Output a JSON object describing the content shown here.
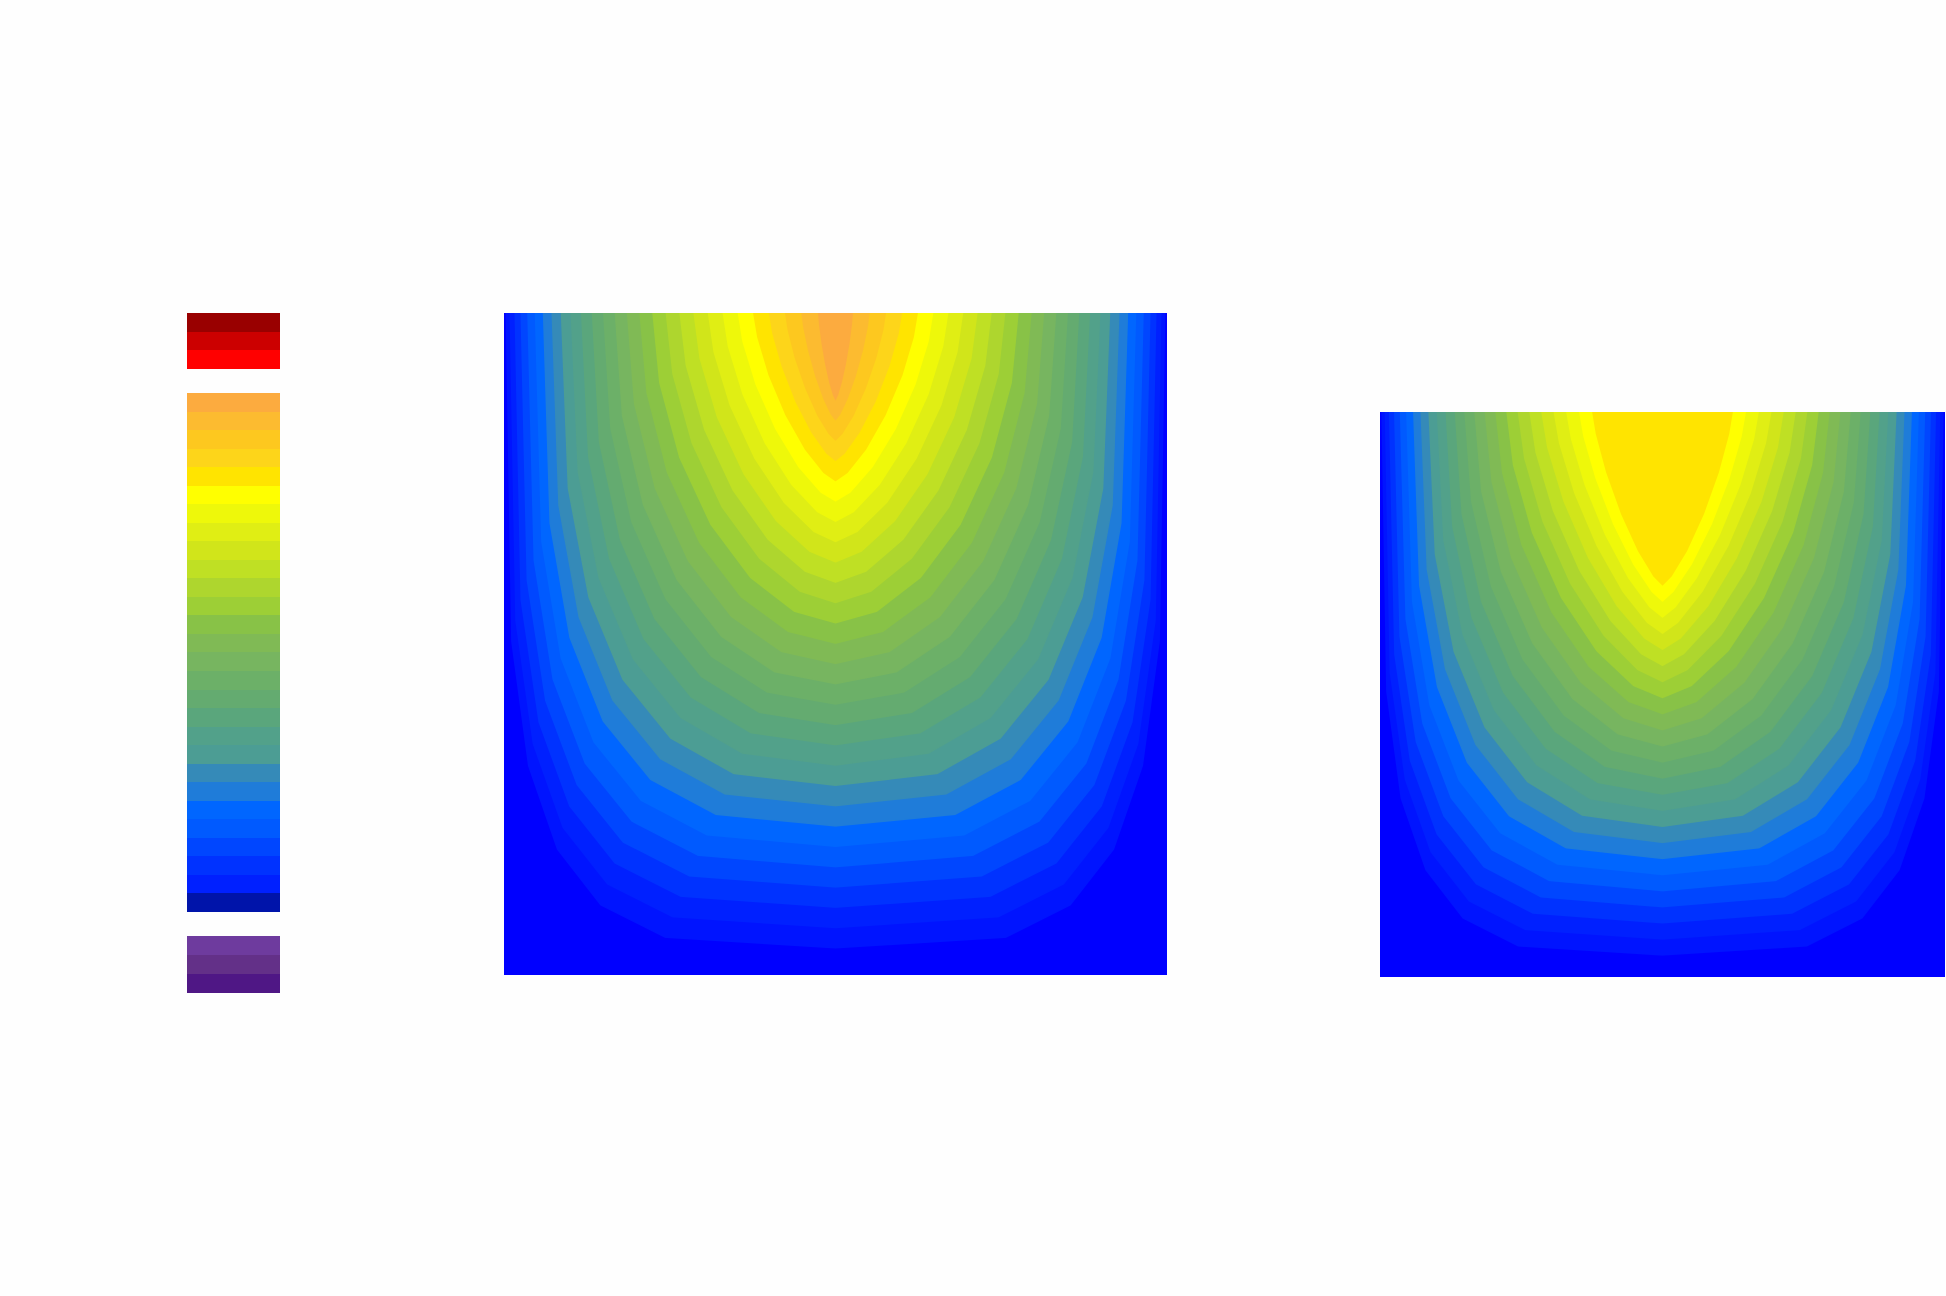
{
  "chart_data": {
    "type": "contour",
    "title": "",
    "colorbar": {
      "over_colors": [
        "#990000",
        "#cc0000",
        "#ff0000"
      ],
      "main_colors": [
        "#fcab3f",
        "#fcbb30",
        "#fdc81f",
        "#fdd51a",
        "#ffe400",
        "#ffff00",
        "#eef80a",
        "#e0ee14",
        "#d1e51a",
        "#bfe024",
        "#aed62e",
        "#9dcf36",
        "#88c247",
        "#80ba55",
        "#77b560",
        "#6cb068",
        "#64ab70",
        "#5aa67c",
        "#52a18a",
        "#4c9d94",
        "#358ab8",
        "#1f7cd9",
        "#0066ff",
        "#005aff",
        "#0046ff",
        "#0032ff",
        "#0020ff",
        "#0014aa"
      ],
      "under_colors": [
        "#6e3b9e",
        "#633088",
        "#4f1785"
      ]
    },
    "plots": [
      {
        "name": "contour-plot-left",
        "max_level_fraction": 1.0,
        "bands": [
          "#0000ff",
          "#0014ff",
          "#0020ff",
          "#0032ff",
          "#0046ff",
          "#005aff",
          "#0066ff",
          "#1f7cd9",
          "#358ab8",
          "#4c9d94",
          "#52a18a",
          "#5aa67c",
          "#64ab70",
          "#6cb068",
          "#77b560",
          "#80ba55",
          "#88c247",
          "#9dcf36",
          "#aed62e",
          "#bfe024",
          "#d1e51a",
          "#e0ee14",
          "#eef80a",
          "#ffff00",
          "#ffe400",
          "#fdd51a",
          "#fdc81f",
          "#fcbb30",
          "#fcab3f"
        ]
      },
      {
        "name": "contour-plot-right",
        "max_level_fraction": 0.8,
        "bands": [
          "#0000ff",
          "#0014ff",
          "#0020ff",
          "#0032ff",
          "#0046ff",
          "#005aff",
          "#0066ff",
          "#1f7cd9",
          "#358ab8",
          "#4c9d94",
          "#52a18a",
          "#5aa67c",
          "#64ab70",
          "#6cb068",
          "#77b560",
          "#80ba55",
          "#88c247",
          "#9dcf36",
          "#aed62e",
          "#bfe024",
          "#d1e51a",
          "#e0ee14",
          "#eef80a",
          "#ffff00",
          "#ffe400"
        ]
      }
    ]
  }
}
